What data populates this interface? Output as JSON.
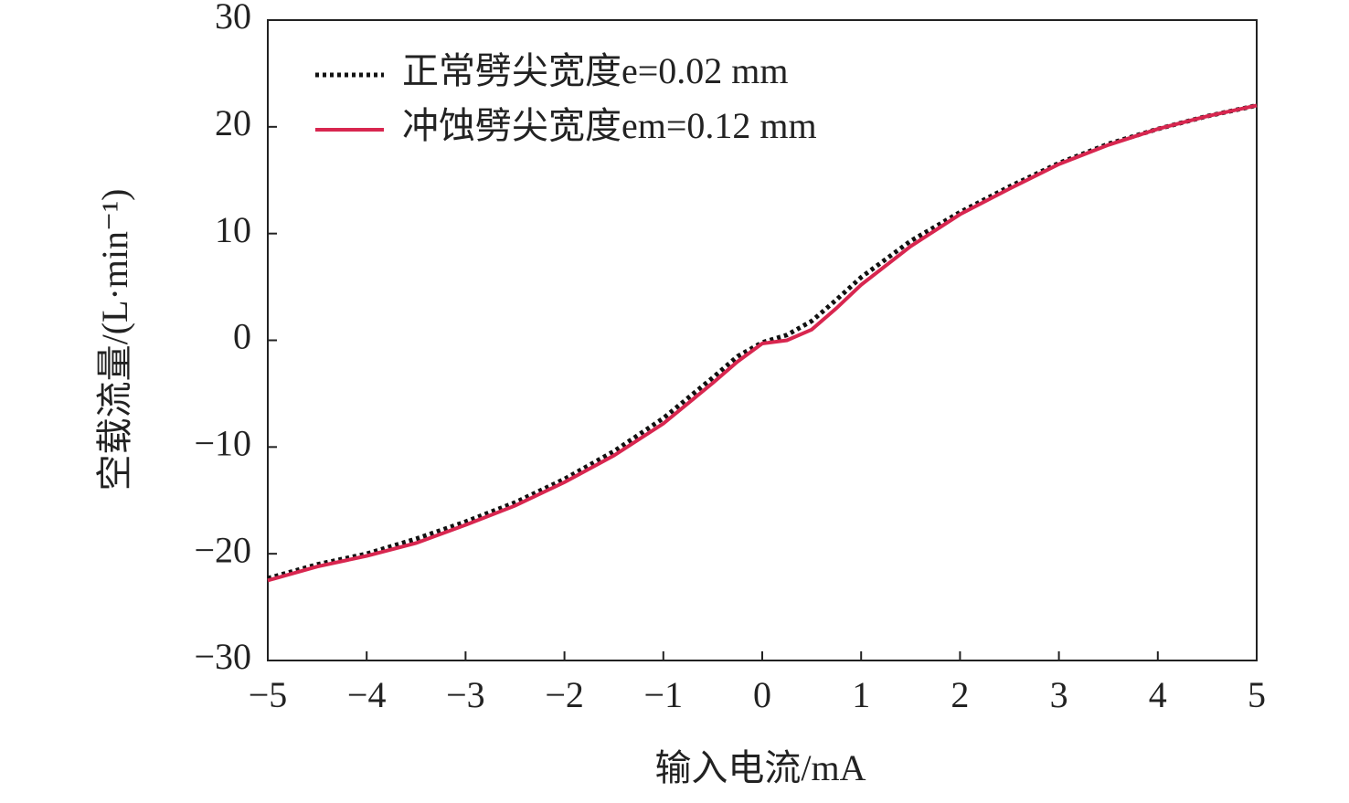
{
  "chart_data": {
    "type": "line",
    "xlabel": "输入电流/mA",
    "ylabel": "空载流量/(L·min⁻¹)",
    "x": [
      -5,
      -4.5,
      -4,
      -3.5,
      -3,
      -2.5,
      -2,
      -1.5,
      -1,
      -0.5,
      -0.25,
      0,
      0.25,
      0.5,
      0.75,
      1,
      1.5,
      2,
      2.5,
      3,
      3.5,
      4,
      4.5,
      5
    ],
    "series": [
      {
        "name": "正常劈尖宽度e=0.02 mm",
        "color": "#111111",
        "style": "dotted",
        "values": [
          -22.3,
          -21,
          -20,
          -18.6,
          -17,
          -15.2,
          -13,
          -10.4,
          -7.3,
          -3.5,
          -1.5,
          -0.2,
          0.5,
          1.8,
          3.8,
          5.9,
          9.3,
          12,
          14.4,
          16.6,
          18.4,
          19.8,
          21,
          22
        ]
      },
      {
        "name": "冲蚀劈尖宽度em=0.12 mm",
        "color": "#d8264f",
        "style": "solid",
        "values": [
          -22.5,
          -21.2,
          -20.2,
          -19,
          -17.3,
          -15.5,
          -13.3,
          -10.8,
          -7.8,
          -4,
          -2,
          -0.3,
          0,
          1,
          3,
          5.2,
          8.8,
          11.8,
          14.2,
          16.5,
          18.3,
          19.8,
          21,
          22
        ]
      }
    ],
    "xlim": [
      -5,
      5
    ],
    "xticks": [
      {
        "value": -5,
        "label": "−5"
      },
      {
        "value": -4,
        "label": "−4"
      },
      {
        "value": -3,
        "label": "−3"
      },
      {
        "value": -2,
        "label": "−2"
      },
      {
        "value": -1,
        "label": "−1"
      },
      0,
      1,
      2,
      3,
      4,
      5
    ],
    "ylim": [
      -30,
      30
    ],
    "yticks": [
      {
        "value": -30,
        "label": "−30"
      },
      {
        "value": -20,
        "label": "−20"
      },
      {
        "value": -10,
        "label": "−10"
      },
      0,
      10,
      20,
      30
    ],
    "legend": "upper-left"
  }
}
